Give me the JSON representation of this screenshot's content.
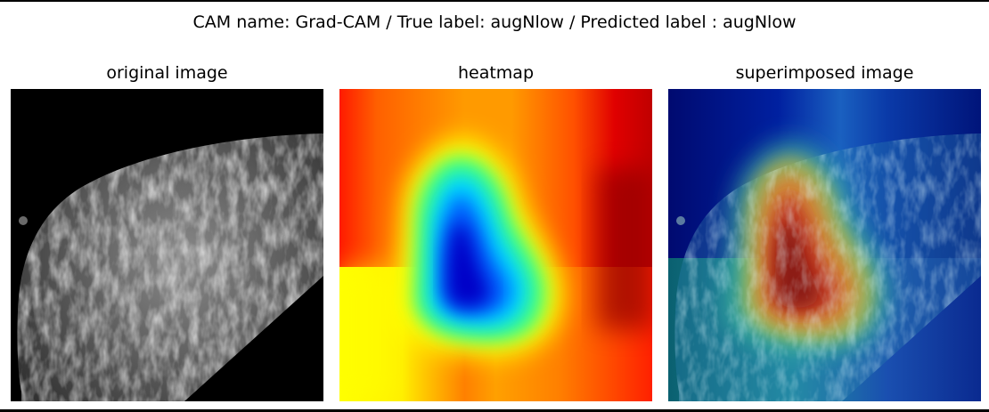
{
  "figure": {
    "suptitle": "CAM name: Grad-CAM / True label: augNlow / Predicted label : augNlow"
  },
  "panels": [
    {
      "title": "original image",
      "image": "grayscale breast mammogram"
    },
    {
      "title": "heatmap",
      "image": "jet colormap Grad-CAM heatmap"
    },
    {
      "title": "superimposed image",
      "image": "heatmap overlaid on mammogram"
    }
  ],
  "colors": {
    "frame": "#000000",
    "background": "#ffffff",
    "jet_low": "#00008f",
    "jet_high": "#800000"
  }
}
